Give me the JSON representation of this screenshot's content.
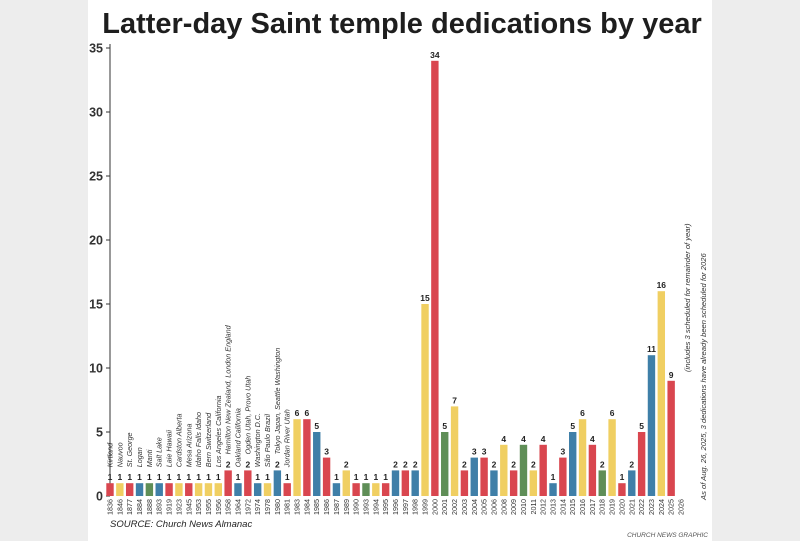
{
  "chart_data": {
    "type": "bar",
    "title": "Latter-day Saint temple dedications by year",
    "ylim": [
      0,
      35
    ],
    "yticks": [
      0,
      5,
      10,
      15,
      20,
      25,
      30,
      35
    ],
    "grid": false,
    "bar_colors": [
      "#3f7fa8",
      "#f0cf62",
      "#d9464f",
      "#5f8e57"
    ],
    "categories": [
      "1836",
      "1846",
      "1877",
      "1884",
      "1888",
      "1893",
      "1919",
      "1923",
      "1945",
      "1953",
      "1955",
      "1956",
      "1958",
      "1964",
      "1972",
      "1974",
      "1978",
      "1980",
      "1981",
      "1983",
      "1984",
      "1985",
      "1986",
      "1987",
      "1989",
      "1990",
      "1993",
      "1994",
      "1995",
      "1996",
      "1997",
      "1998",
      "1999",
      "2000",
      "2001",
      "2002",
      "2003",
      "2004",
      "2005",
      "2006",
      "2008",
      "2009",
      "2010",
      "2011",
      "2012",
      "2013",
      "2014",
      "2015",
      "2016",
      "2017",
      "2018",
      "2019",
      "2020",
      "2021",
      "2022",
      "2023",
      "2024",
      "2025",
      "2026"
    ],
    "values": [
      1,
      1,
      1,
      1,
      1,
      1,
      1,
      1,
      1,
      1,
      1,
      1,
      2,
      1,
      2,
      1,
      1,
      2,
      1,
      6,
      6,
      5,
      3,
      1,
      2,
      1,
      1,
      1,
      1,
      2,
      2,
      2,
      15,
      34,
      5,
      7,
      2,
      3,
      3,
      2,
      4,
      2,
      4,
      2,
      4,
      1,
      3,
      5,
      6,
      4,
      2,
      6,
      1,
      2,
      5,
      11,
      16,
      9,
      null
    ],
    "value_labels": [
      "1",
      "1",
      "1",
      "1",
      "1",
      "1",
      "1",
      "1",
      "1",
      "1",
      "1",
      "1",
      "2",
      "1",
      "2",
      "1",
      "1",
      "2",
      "1",
      "6",
      "6",
      "5",
      "3",
      "1",
      "2",
      "1",
      "1",
      "1",
      "1",
      "2",
      "2",
      "2",
      "15",
      "34",
      "5",
      "7",
      "2",
      "3",
      "3",
      "2",
      "4",
      "2",
      "4",
      "2",
      "4",
      "1",
      "3",
      "5",
      "6",
      "4",
      "2",
      "6",
      "1",
      "2",
      "5",
      "11",
      "16",
      "9",
      ""
    ],
    "temple_names": [
      "Kirtland",
      "Nauvoo",
      "St. George",
      "Logan",
      "Manti",
      "Salt Lake",
      "Laie Hawaii",
      "Cardston Alberta",
      "Mesa Arizona",
      "Idaho Falls Idaho",
      "Bern Switzerland",
      "Los Angeles California",
      "Hamilton New Zealand, London England",
      "Oakland California",
      "Ogden Utah, Provo Utah",
      "Washington D.C.",
      "São Paulo Brazil",
      "Tokyo Japan, Seattle Washington",
      "Jordan River Utah",
      "",
      "",
      "",
      "",
      "",
      "",
      "",
      "",
      "",
      "",
      "",
      "",
      "",
      "",
      "",
      "",
      "",
      "",
      "",
      "",
      "",
      "",
      "",
      "",
      "",
      "",
      "",
      "",
      "",
      "",
      "",
      "",
      "",
      "",
      "",
      "",
      "",
      "",
      "",
      ""
    ],
    "annotations": [
      "(includes 3 scheduled for remainder of year)",
      "As of Aug. 26, 2025, 3 dedications have already been scheduled for 2026"
    ],
    "source": "SOURCE: Church News Almanac",
    "credit": "CHURCH NEWS GRAPHIC"
  }
}
